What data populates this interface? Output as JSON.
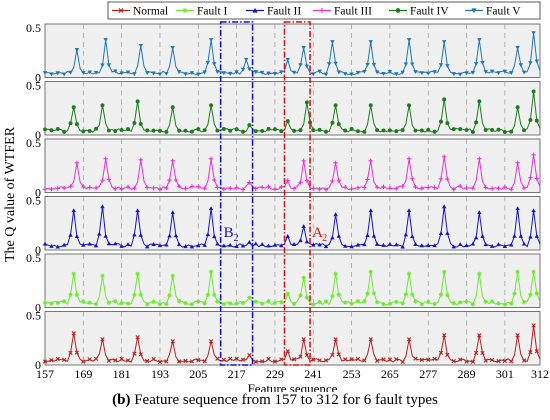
{
  "chart_data": {
    "type": "line",
    "panels": 6,
    "ylabel": "The Q value of WTFER",
    "xlabel": "Feature sequence",
    "xlim": [
      157,
      312
    ],
    "ylim": [
      0,
      0.5
    ],
    "x_ticks": [
      157,
      169,
      181,
      193,
      205,
      217,
      229,
      241,
      253,
      265,
      277,
      289,
      301,
      312
    ],
    "y_ticks": [
      "0",
      "0.5"
    ],
    "grid": "dashed-vertical",
    "legend_position": "top",
    "series": [
      {
        "name": "Fault V",
        "color": "#1f77b4",
        "marker": "triangle-down",
        "peaks": [
          [
            167,
            0.28
          ],
          [
            176,
            0.38
          ],
          [
            187,
            0.32
          ],
          [
            197,
            0.3
          ],
          [
            209,
            0.38
          ],
          [
            220,
            0.18
          ],
          [
            233,
            0.18
          ],
          [
            238,
            0.3
          ],
          [
            247,
            0.36
          ],
          [
            259,
            0.36
          ],
          [
            271,
            0.38
          ],
          [
            282,
            0.36
          ],
          [
            293,
            0.38
          ],
          [
            305,
            0.3
          ],
          [
            310,
            0.45
          ]
        ]
      },
      {
        "name": "Fault IV",
        "color": "#1e7b1e",
        "marker": "circle",
        "peaks": [
          [
            166,
            0.28
          ],
          [
            175,
            0.3
          ],
          [
            186,
            0.34
          ],
          [
            197,
            0.28
          ],
          [
            209,
            0.3
          ],
          [
            221,
            0.1
          ],
          [
            233,
            0.14
          ],
          [
            239,
            0.33
          ],
          [
            248,
            0.3
          ],
          [
            259,
            0.3
          ],
          [
            271,
            0.3
          ],
          [
            282,
            0.36
          ],
          [
            293,
            0.34
          ],
          [
            305,
            0.28
          ],
          [
            310,
            0.44
          ]
        ]
      },
      {
        "name": "Fault III",
        "color": "#e234d6",
        "marker": "plus",
        "peaks": [
          [
            167,
            0.3
          ],
          [
            176,
            0.34
          ],
          [
            187,
            0.33
          ],
          [
            197,
            0.32
          ],
          [
            209,
            0.34
          ],
          [
            221,
            0.1
          ],
          [
            233,
            0.12
          ],
          [
            238,
            0.32
          ],
          [
            248,
            0.3
          ],
          [
            259,
            0.32
          ],
          [
            271,
            0.34
          ],
          [
            282,
            0.36
          ],
          [
            293,
            0.34
          ],
          [
            305,
            0.3
          ],
          [
            310,
            0.38
          ]
        ]
      },
      {
        "name": "Fault II",
        "color": "#1515c8",
        "marker": "triangle-up",
        "peaks": [
          [
            166,
            0.4
          ],
          [
            175,
            0.44
          ],
          [
            186,
            0.4
          ],
          [
            197,
            0.38
          ],
          [
            209,
            0.42
          ],
          [
            221,
            0.08
          ],
          [
            233,
            0.14
          ],
          [
            238,
            0.24
          ],
          [
            248,
            0.36
          ],
          [
            259,
            0.4
          ],
          [
            271,
            0.4
          ],
          [
            282,
            0.44
          ],
          [
            293,
            0.38
          ],
          [
            305,
            0.42
          ],
          [
            310,
            0.4
          ]
        ]
      },
      {
        "name": "Fault I",
        "color": "#6ee832",
        "marker": "star",
        "peaks": [
          [
            166,
            0.34
          ],
          [
            175,
            0.32
          ],
          [
            186,
            0.34
          ],
          [
            197,
            0.32
          ],
          [
            209,
            0.36
          ],
          [
            221,
            0.1
          ],
          [
            233,
            0.14
          ],
          [
            238,
            0.3
          ],
          [
            248,
            0.34
          ],
          [
            259,
            0.36
          ],
          [
            271,
            0.34
          ],
          [
            282,
            0.36
          ],
          [
            293,
            0.34
          ],
          [
            305,
            0.36
          ],
          [
            310,
            0.36
          ]
        ]
      },
      {
        "name": "Normal",
        "color": "#b22222",
        "marker": "x",
        "peaks": [
          [
            166,
            0.32
          ],
          [
            175,
            0.26
          ],
          [
            186,
            0.28
          ],
          [
            197,
            0.24
          ],
          [
            209,
            0.24
          ],
          [
            221,
            0.1
          ],
          [
            233,
            0.14
          ],
          [
            238,
            0.26
          ],
          [
            248,
            0.26
          ],
          [
            259,
            0.26
          ],
          [
            271,
            0.26
          ],
          [
            282,
            0.3
          ],
          [
            293,
            0.3
          ],
          [
            305,
            0.3
          ],
          [
            310,
            0.4
          ]
        ]
      }
    ],
    "legend_order": [
      "Normal",
      "Fault I",
      "Fault II",
      "Fault III",
      "Fault IV",
      "Fault V"
    ],
    "annotations": [
      {
        "label": "B",
        "sub": "2",
        "x_range": [
          212,
          222
        ],
        "color": "#1515c8",
        "style": "dash-dot"
      },
      {
        "label": "A",
        "sub": "2",
        "x_range": [
          232,
          240
        ],
        "color": "#d11a1a",
        "style": "dash-dot"
      }
    ]
  },
  "caption": {
    "bold": "(b)",
    "text": " Feature sequence from 157 to 312 for 6 fault types"
  }
}
